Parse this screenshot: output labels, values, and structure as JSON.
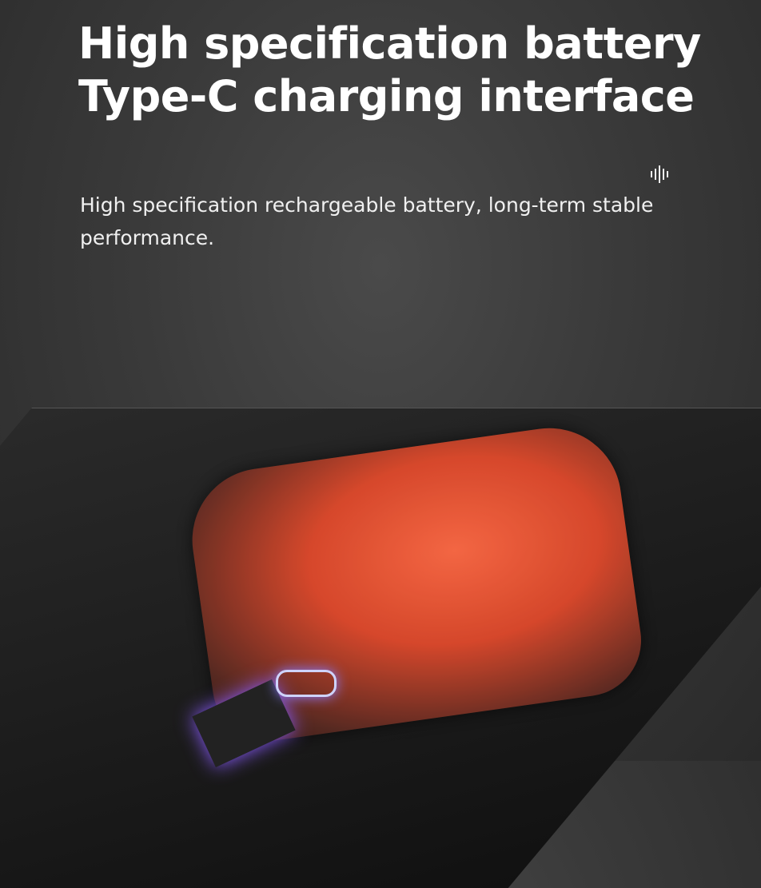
{
  "headline": {
    "line1": "High specification battery",
    "line2": "Type-C charging interface"
  },
  "description": "High specification rechargeable battery, long-term stable performance.",
  "icons": {
    "audio": "sound-wave-icon"
  },
  "colors": {
    "background": "#3a3a3a",
    "case": "#e04a2c",
    "text": "#ffffff"
  }
}
